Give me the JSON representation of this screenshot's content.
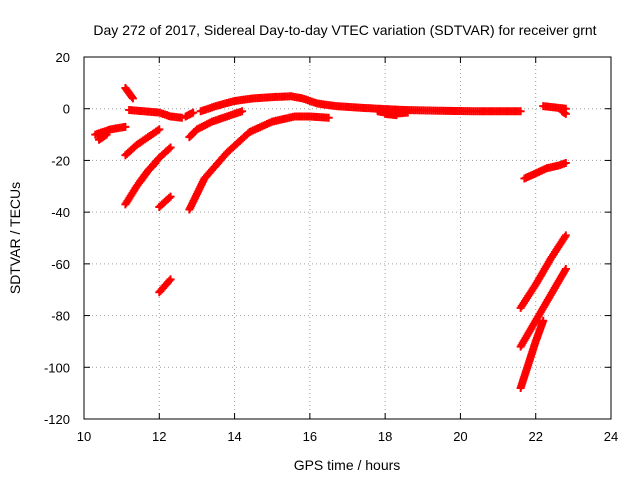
{
  "chart_data": {
    "type": "scatter",
    "title": "Day 272 of 2017, Sidereal Day-to-day VTEC variation (SDTVAR) for receiver grnt",
    "xlabel": "GPS time / hours",
    "ylabel": "SDTVAR / TECUs",
    "xlim": [
      10,
      24
    ],
    "ylim": [
      -120,
      20
    ],
    "xticks": [
      10,
      12,
      14,
      16,
      18,
      20,
      22,
      24
    ],
    "yticks": [
      -120,
      -100,
      -80,
      -60,
      -40,
      -20,
      0,
      20
    ],
    "grid": true,
    "marker": "plus",
    "color": "#ff0000",
    "series": [
      {
        "x": [
          10.3,
          10.5,
          10.7,
          10.9,
          11.1
        ],
        "y": [
          -10,
          -9,
          -8,
          -7.5,
          -7
        ]
      },
      {
        "x": [
          10.4,
          10.5,
          10.6
        ],
        "y": [
          -12,
          -11,
          -10
        ]
      },
      {
        "x": [
          11.1,
          11.2,
          11.3
        ],
        "y": [
          8,
          6,
          4
        ]
      },
      {
        "x": [
          11.2,
          11.6,
          12.0,
          12.3,
          12.6
        ],
        "y": [
          -0.5,
          -1,
          -1.5,
          -3,
          -3.5
        ]
      },
      {
        "x": [
          12.1,
          12.3
        ],
        "y": [
          -2,
          -3
        ]
      },
      {
        "x": [
          12.7,
          12.9
        ],
        "y": [
          -3,
          -1.5
        ]
      },
      {
        "x": [
          13.1,
          13.5,
          14.0,
          14.5,
          15.0,
          15.5,
          15.8,
          16.2,
          16.7,
          17.2,
          17.8,
          18.5,
          19.5,
          20.5,
          21.2,
          21.6
        ],
        "y": [
          -1,
          1,
          3,
          4,
          4.5,
          4.8,
          4,
          2,
          1,
          0.5,
          0,
          -0.5,
          -0.8,
          -1,
          -1,
          -1
        ]
      },
      {
        "x": [
          17.8,
          18.2,
          18.6
        ],
        "y": [
          -1,
          -2,
          -1.5
        ]
      },
      {
        "x": [
          18.0,
          18.3
        ],
        "y": [
          -2,
          -2.5
        ]
      },
      {
        "x": [
          11.1,
          11.4,
          11.7,
          12.0
        ],
        "y": [
          -18,
          -14,
          -11,
          -8
        ]
      },
      {
        "x": [
          11.1,
          11.4,
          11.7,
          12.0,
          12.3
        ],
        "y": [
          -37,
          -30,
          -24,
          -19,
          -15
        ]
      },
      {
        "x": [
          11.5,
          11.7,
          11.9
        ],
        "y": [
          -28,
          -24,
          -21
        ]
      },
      {
        "x": [
          12.0,
          12.3
        ],
        "y": [
          -38,
          -34
        ]
      },
      {
        "x": [
          12.0,
          12.3
        ],
        "y": [
          -71,
          -66
        ]
      },
      {
        "x": [
          12.8,
          13.0,
          13.4,
          13.8,
          14.2
        ],
        "y": [
          -11,
          -8,
          -5,
          -3,
          -1
        ]
      },
      {
        "x": [
          12.8,
          13.2,
          13.8,
          14.4,
          15.0,
          15.6,
          16.0,
          16.5
        ],
        "y": [
          -39,
          -27,
          -17,
          -9,
          -5,
          -3,
          -3,
          -3.5
        ]
      },
      {
        "x": [
          21.7,
          22.0,
          22.3,
          22.6,
          22.8
        ],
        "y": [
          -27,
          -25,
          -23,
          -22,
          -21
        ]
      },
      {
        "x": [
          22.2,
          22.5,
          22.8
        ],
        "y": [
          1,
          0.5,
          0
        ]
      },
      {
        "x": [
          22.7,
          22.8
        ],
        "y": [
          -1,
          -2
        ]
      },
      {
        "x": [
          21.6,
          22.0,
          22.4,
          22.8
        ],
        "y": [
          -77,
          -68,
          -58,
          -49
        ]
      },
      {
        "x": [
          21.6,
          22.0,
          22.4,
          22.8
        ],
        "y": [
          -92,
          -82,
          -72,
          -62
        ]
      },
      {
        "x": [
          21.6,
          21.8,
          22.0,
          22.2
        ],
        "y": [
          -108,
          -99,
          -90,
          -82
        ]
      }
    ]
  }
}
